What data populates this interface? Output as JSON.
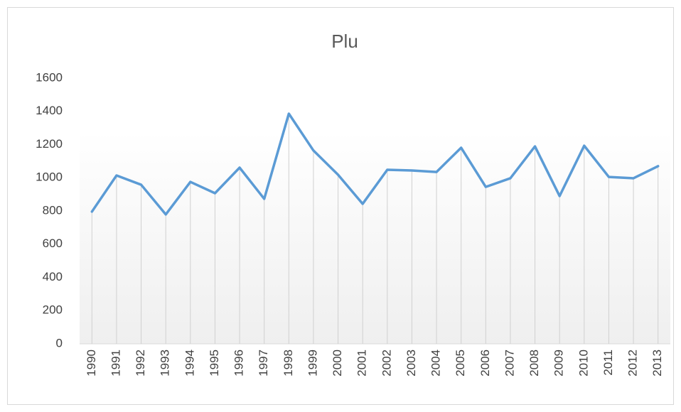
{
  "chart_data": {
    "type": "line",
    "title": "Plu",
    "categories": [
      "1990",
      "1991",
      "1992",
      "1993",
      "1994",
      "1995",
      "1996",
      "1997",
      "1998",
      "1999",
      "2000",
      "2001",
      "2002",
      "2003",
      "2004",
      "2005",
      "2006",
      "2007",
      "2008",
      "2009",
      "2010",
      "2011",
      "2012",
      "2013"
    ],
    "values": [
      796,
      1014,
      958,
      779,
      975,
      907,
      1061,
      873,
      1386,
      1164,
      1018,
      843,
      1048,
      1044,
      1035,
      1181,
      945,
      997,
      1189,
      890,
      1193,
      1005,
      997,
      1070
    ],
    "color": "#5b9bd5",
    "ylim": [
      0,
      1600
    ],
    "yticks": [
      0,
      200,
      400,
      600,
      800,
      1000,
      1200,
      1400,
      1600
    ],
    "drop_lines": true
  }
}
